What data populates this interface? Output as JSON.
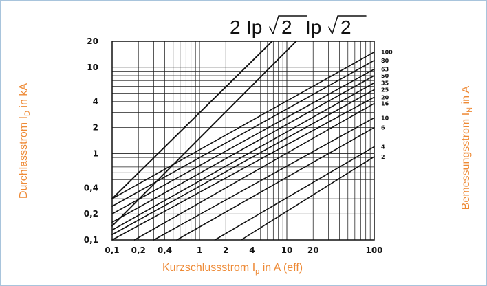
{
  "labels": {
    "y_left_main": "Durchlassstrom I",
    "y_left_sub": "D",
    "y_left_tail": " in kA",
    "x_main": "Kurzschlussstrom I",
    "x_sub": "p",
    "x_tail": " in A (eff)",
    "y_right_main": "Bemessungsstrom I",
    "y_right_sub": "N",
    "y_right_tail": " in A"
  },
  "formula": {
    "peak_factor": "2",
    "symbol": "Ip",
    "sqrt_value": "2"
  },
  "colors": {
    "accent_text": "#ee8a36",
    "frame": "#a8c4dc",
    "line": "#111111",
    "grid": "#222222"
  },
  "chart_data": {
    "type": "line",
    "title": "",
    "xlabel": "Kurzschlussstrom Ip in A (eff)",
    "ylabel": "Durchlassstrom ID in kA",
    "secondary_ylabel": "Bemessungsstrom IN in A",
    "xscale": "log",
    "yscale": "log",
    "xlim": [
      0.1,
      100
    ],
    "ylim": [
      0.1,
      20
    ],
    "x_tick_labels": [
      "0,1",
      "0,2",
      "0,4",
      "1",
      "2",
      "4",
      "10",
      "20",
      "100"
    ],
    "x_tick_values": [
      0.1,
      0.2,
      0.4,
      1,
      2,
      4,
      10,
      20,
      100
    ],
    "y_tick_labels": [
      "0,1",
      "0,2",
      "0,4",
      "1",
      "2",
      "4",
      "10",
      "20"
    ],
    "y_tick_values": [
      0.1,
      0.2,
      0.4,
      1,
      2,
      4,
      10,
      20
    ],
    "grid": true,
    "series": [
      {
        "name": "2 Ip√2",
        "x": [
          0.1,
          6.8
        ],
        "y": [
          0.3,
          20
        ]
      },
      {
        "name": "Ip√2",
        "x": [
          0.1,
          12.8
        ],
        "y": [
          0.145,
          20
        ]
      },
      {
        "name": "100",
        "x": [
          0.1,
          100
        ],
        "y": [
          0.3,
          15
        ]
      },
      {
        "name": "80",
        "x": [
          0.1,
          100
        ],
        "y": [
          0.245,
          12
        ]
      },
      {
        "name": "63",
        "x": [
          0.1,
          100
        ],
        "y": [
          0.2,
          9.5
        ]
      },
      {
        "name": "50",
        "x": [
          0.1,
          100
        ],
        "y": [
          0.16,
          8.0
        ]
      },
      {
        "name": "35",
        "x": [
          0.1,
          100
        ],
        "y": [
          0.13,
          6.6
        ]
      },
      {
        "name": "25",
        "x": [
          0.1,
          100
        ],
        "y": [
          0.115,
          5.5
        ]
      },
      {
        "name": "20",
        "x": [
          0.1,
          100
        ],
        "y": [
          0.1,
          4.5
        ]
      },
      {
        "name": "16",
        "x": [
          0.18,
          100
        ],
        "y": [
          0.1,
          3.8
        ]
      },
      {
        "name": "10",
        "x": [
          0.3,
          100
        ],
        "y": [
          0.1,
          2.6
        ]
      },
      {
        "name": "6",
        "x": [
          0.55,
          100
        ],
        "y": [
          0.1,
          2.0
        ]
      },
      {
        "name": "4",
        "x": [
          1.5,
          100
        ],
        "y": [
          0.1,
          1.2
        ]
      },
      {
        "name": "2",
        "x": [
          3.0,
          100
        ],
        "y": [
          0.1,
          0.92
        ]
      }
    ],
    "right_labels": [
      "100",
      "80",
      "63",
      "50",
      "35",
      "25",
      "20",
      "16",
      "10",
      "6",
      "4",
      "2"
    ]
  }
}
